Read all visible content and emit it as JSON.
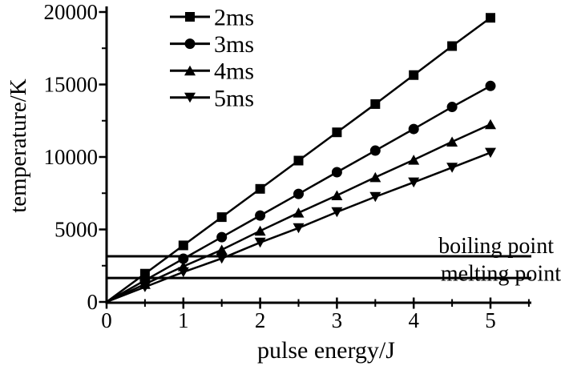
{
  "figure": {
    "background": "#ffffff",
    "ink_color": "#000000"
  },
  "chart_data": {
    "type": "line",
    "title": "",
    "xlabel": "pulse energy/J",
    "ylabel": "temperature/K",
    "xlim": [
      0,
      5.5
    ],
    "ylim": [
      0,
      20000
    ],
    "grid": false,
    "x_major_ticks": [
      0,
      1,
      2,
      3,
      4,
      5
    ],
    "x_minor_ticks": [
      0.5,
      1.5,
      2.5,
      3.5,
      4.5,
      5.5
    ],
    "y_major_ticks": [
      0,
      5000,
      10000,
      15000,
      20000
    ],
    "y_minor_ticks": [
      2500,
      7500,
      12500,
      17500
    ],
    "x_tick_labels": [
      "0",
      "1",
      "2",
      "3",
      "4",
      "5"
    ],
    "y_tick_labels": [
      "0",
      "5000",
      "10000",
      "15000",
      "20000"
    ],
    "x": [
      0,
      0.5,
      1,
      1.5,
      2,
      2.5,
      3,
      3.5,
      4,
      4.5,
      5
    ],
    "series": [
      {
        "name": "2ms",
        "marker": "square",
        "values": [
          0,
          1950,
          3900,
          5850,
          7800,
          9750,
          11700,
          13650,
          15650,
          17650,
          19600
        ]
      },
      {
        "name": "3ms",
        "marker": "circle",
        "values": [
          0,
          1490,
          2980,
          4470,
          5960,
          7450,
          8950,
          10440,
          11930,
          13450,
          14900
        ]
      },
      {
        "name": "4ms",
        "marker": "triangle-up",
        "values": [
          0,
          1230,
          2450,
          3600,
          4900,
          6150,
          7350,
          8600,
          9800,
          11050,
          12250
        ]
      },
      {
        "name": "5ms",
        "marker": "triangle-down",
        "values": [
          0,
          1030,
          2060,
          3000,
          4100,
          5100,
          6200,
          7250,
          8250,
          9270,
          10300
        ]
      }
    ],
    "reference_lines": [
      {
        "label": "boiling point",
        "value": 3150
      },
      {
        "label": "melting point",
        "value": 1650
      }
    ],
    "legend": {
      "position": "top-left-inside",
      "entries": [
        "2ms",
        "3ms",
        "4ms",
        "5ms"
      ]
    }
  }
}
